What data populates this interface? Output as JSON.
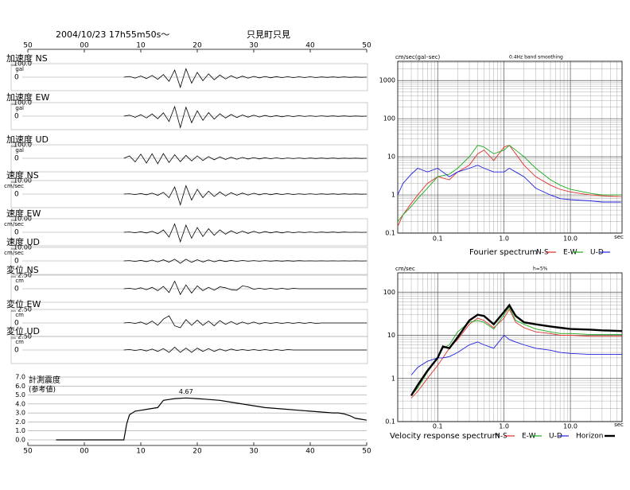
{
  "chart_data": [
    {
      "type": "waveform",
      "title": "2004/10/23 17h55m50s～",
      "station": "只見町只見",
      "xlim": [
        0,
        60
      ],
      "xticks": [
        {
          "value": 0,
          "label": "50"
        },
        {
          "value": 10,
          "label": "00"
        },
        {
          "value": 20,
          "label": "10"
        },
        {
          "value": 30,
          "label": "20"
        },
        {
          "value": 40,
          "label": "30"
        },
        {
          "value": 50,
          "label": "40"
        },
        {
          "value": 60,
          "label": "50"
        }
      ],
      "x": [
        17,
        18,
        19,
        20,
        21,
        22,
        23,
        24,
        25,
        26,
        27,
        28,
        29,
        30,
        31,
        32,
        33,
        34,
        35,
        36,
        37,
        38,
        39,
        40,
        41,
        42,
        43,
        44,
        45,
        46,
        47,
        48,
        49,
        50,
        51,
        52,
        53,
        54,
        55,
        56,
        57,
        58,
        59,
        60
      ],
      "color": "#000000",
      "panels": [
        {
          "name": "加速度 NS",
          "unit": "gal",
          "ylim": [
            -100,
            100
          ],
          "yticks": [
            0,
            {
              "value": 100,
              "label": "100.0"
            }
          ],
          "values": [
            0,
            6,
            -8,
            10,
            -12,
            15,
            -18,
            22,
            -35,
            60,
            -85,
            70,
            -50,
            40,
            -30,
            28,
            -22,
            18,
            -15,
            12,
            -10,
            9,
            -8,
            7,
            -6,
            6,
            -5,
            5,
            -4,
            4,
            -4,
            3,
            -3,
            3,
            -3,
            2,
            -2,
            2,
            -2,
            2,
            -2,
            1,
            -1,
            0
          ]
        },
        {
          "name": "加速度 EW",
          "unit": "gal",
          "ylim": [
            -100,
            100
          ],
          "yticks": [
            0,
            {
              "value": 100,
              "label": "100.0"
            }
          ],
          "values": [
            0,
            8,
            -10,
            12,
            -15,
            18,
            -22,
            28,
            -45,
            80,
            -95,
            75,
            -55,
            45,
            -35,
            30,
            -25,
            20,
            -16,
            14,
            -12,
            10,
            -9,
            8,
            -7,
            6,
            -6,
            5,
            -5,
            4,
            -4,
            4,
            -3,
            3,
            -3,
            3,
            -2,
            2,
            -2,
            2,
            -2,
            1,
            -1,
            0
          ]
        },
        {
          "name": "加速度 UD",
          "unit": "gal",
          "ylim": [
            -100,
            100
          ],
          "yticks": [
            0,
            {
              "value": 100,
              "label": "100.0"
            }
          ],
          "values": [
            0,
            20,
            -30,
            35,
            -40,
            38,
            -45,
            40,
            -35,
            30,
            -28,
            25,
            -22,
            20,
            -18,
            15,
            -13,
            12,
            -10,
            9,
            -8,
            7,
            -6,
            6,
            -5,
            5,
            -4,
            4,
            -4,
            3,
            -3,
            3,
            -3,
            2,
            -2,
            2,
            -2,
            2,
            -2,
            1,
            -1,
            1,
            -1,
            0
          ]
        },
        {
          "name": "速度 NS",
          "unit": "cm/sec",
          "ylim": [
            -10,
            10
          ],
          "yticks": [
            0,
            {
              "value": 10,
              "label": "10.00"
            }
          ],
          "values": [
            0,
            0.3,
            -0.4,
            0.5,
            -0.6,
            0.8,
            -1,
            1.5,
            -3,
            6,
            -9,
            7,
            -5,
            4,
            -3,
            2.5,
            -2,
            1.8,
            -1.5,
            1.2,
            -1,
            0.9,
            -0.8,
            0.7,
            -0.6,
            0.6,
            -0.5,
            0.5,
            -0.4,
            0.4,
            -0.4,
            0.3,
            -0.3,
            0.3,
            -0.3,
            0.2,
            -0.2,
            0.2,
            -0.2,
            0.2,
            -0.1,
            0.1,
            -0.1,
            0
          ]
        },
        {
          "name": "速度 EW",
          "unit": "cm/sec",
          "ylim": [
            -10,
            10
          ],
          "yticks": [
            0,
            {
              "value": 10,
              "label": "10.00"
            }
          ],
          "values": [
            0,
            0.3,
            -0.4,
            0.5,
            -0.6,
            0.8,
            -1.2,
            2,
            -4,
            7,
            -8,
            6,
            -5,
            4,
            -3.5,
            3,
            -2.5,
            2,
            -1.6,
            1.3,
            -1.1,
            1,
            -0.9,
            0.8,
            -0.7,
            0.6,
            -0.5,
            0.5,
            -0.5,
            0.4,
            -0.4,
            0.3,
            -0.3,
            0.3,
            -0.3,
            0.2,
            -0.2,
            0.2,
            -0.2,
            0.2,
            -0.1,
            0.1,
            -0.1,
            0
          ]
        },
        {
          "name": "速度 UD",
          "unit": "cm/sec",
          "ylim": [
            -10,
            10
          ],
          "yticks": [
            0,
            {
              "value": 10,
              "label": "10.00"
            }
          ],
          "values": [
            0,
            0.3,
            -0.4,
            0.5,
            -0.6,
            0.7,
            -0.8,
            0.9,
            -1,
            1.5,
            -2,
            1.5,
            -1.2,
            1,
            -0.9,
            0.8,
            -0.7,
            0.6,
            -0.5,
            0.5,
            -0.4,
            0.4,
            -0.3,
            0.3,
            -0.3,
            0.3,
            -0.2,
            0.2,
            -0.2,
            0.2,
            -0.2,
            0.2,
            -0.1,
            0.1,
            -0.1,
            0.1,
            -0.1,
            0.1,
            -0.1,
            0.1,
            -0.1,
            0.1,
            -0.1,
            0
          ]
        },
        {
          "name": "変位 NS",
          "unit": "cm",
          "ylim": [
            -2.5,
            2.5
          ],
          "yticks": [
            0,
            {
              "value": 2.5,
              "label": "2.50"
            }
          ],
          "values": [
            0,
            0.1,
            -0.1,
            0.2,
            -0.2,
            0.3,
            -0.4,
            0.5,
            -0.8,
            1.6,
            -1.2,
            0.8,
            -0.9,
            0.6,
            -0.4,
            0.3,
            -0.3,
            0.4,
            0.2,
            -0.2,
            -0.3,
            0.6,
            0.4,
            -0.1,
            0.1,
            -0.1,
            0.1,
            -0.1,
            0.1,
            -0.1,
            0.1,
            0,
            0,
            0,
            0,
            0,
            0,
            0,
            0,
            0,
            0,
            0,
            0,
            0
          ]
        },
        {
          "name": "変位 EW",
          "unit": "cm",
          "ylim": [
            -2.5,
            2.5
          ],
          "yticks": [
            0,
            {
              "value": 2.5,
              "label": "2.50"
            }
          ],
          "values": [
            0,
            0.1,
            -0.1,
            0.2,
            -0.3,
            0.4,
            -0.5,
            0.8,
            1.5,
            -0.6,
            -1,
            0.7,
            -0.5,
            0.6,
            -0.5,
            0.4,
            -0.6,
            0.5,
            -0.3,
            0.3,
            -0.3,
            0.2,
            -0.2,
            0.2,
            -0.2,
            0.1,
            -0.1,
            0.1,
            -0.1,
            0.1,
            -0.1,
            0.1,
            -0.1,
            0.1,
            -0.1,
            0,
            0,
            0,
            0,
            0,
            0,
            0,
            0,
            0
          ]
        },
        {
          "name": "変位 UD",
          "unit": "cm",
          "ylim": [
            -2.5,
            2.5
          ],
          "yticks": [
            0,
            {
              "value": 2.5,
              "label": "2.50"
            }
          ],
          "values": [
            0,
            0.1,
            -0.1,
            0.1,
            -0.2,
            0.2,
            -0.3,
            0.3,
            -0.5,
            0.6,
            -0.5,
            0.4,
            -0.5,
            0.4,
            -0.3,
            0.3,
            -0.3,
            0.2,
            -0.2,
            0.2,
            -0.1,
            0.1,
            -0.1,
            0.1,
            -0.1,
            0.1,
            -0.1,
            0.1,
            -0.1,
            0.1,
            0,
            0,
            0,
            0,
            0,
            0,
            0,
            0,
            0,
            0,
            0,
            0,
            0,
            0
          ]
        }
      ]
    },
    {
      "type": "line",
      "title": "計測震度",
      "subtitle": "(参考値)",
      "color": "#000000",
      "grid": true,
      "xlim": [
        0,
        60
      ],
      "xticks": [
        {
          "value": 0,
          "label": "50"
        },
        {
          "value": 10,
          "label": "00"
        },
        {
          "value": 20,
          "label": "10"
        },
        {
          "value": 30,
          "label": "20"
        },
        {
          "value": 40,
          "label": "30"
        },
        {
          "value": 50,
          "label": "40"
        },
        {
          "value": 60,
          "label": "50"
        }
      ],
      "ylim": [
        0,
        7
      ],
      "yticks": [
        {
          "value": 0,
          "label": "0.0"
        },
        {
          "value": 1,
          "label": "1.0"
        },
        {
          "value": 2,
          "label": "2.0"
        },
        {
          "value": 3,
          "label": "3.0"
        },
        {
          "value": 4,
          "label": "4.0"
        },
        {
          "value": 5,
          "label": "5.0"
        },
        {
          "value": 6,
          "label": "6.0"
        },
        {
          "value": 7,
          "label": "7.0"
        }
      ],
      "x": [
        5,
        17,
        17.5,
        18,
        19,
        20,
        21,
        22,
        23,
        24,
        25,
        26,
        28,
        30,
        32,
        34,
        36,
        38,
        40,
        42,
        44,
        46,
        48,
        50,
        52,
        54,
        55,
        56,
        57,
        58,
        59,
        60
      ],
      "values": [
        0,
        0,
        1.8,
        2.8,
        3.2,
        3.3,
        3.4,
        3.5,
        3.6,
        4.4,
        4.5,
        4.6,
        4.67,
        4.6,
        4.5,
        4.4,
        4.2,
        4.0,
        3.8,
        3.6,
        3.5,
        3.4,
        3.3,
        3.2,
        3.1,
        3.0,
        3.0,
        2.9,
        2.7,
        2.4,
        2.3,
        2.2
      ],
      "annotations": [
        {
          "text": "4.67",
          "x": 28,
          "value": 4.67
        }
      ]
    },
    {
      "type": "loglog",
      "title": "Fourier spectrum",
      "unit": "cm/sec(gal･sec)",
      "note": "0.4Hz band smoothing",
      "xlabel": "sec",
      "log_x": true,
      "log_y": true,
      "grid": true,
      "legend": "bottom",
      "xlim": [
        0.025,
        60
      ],
      "ylim": [
        0.1,
        3200
      ],
      "xticks": [
        0.1,
        {
          "value": 1,
          "label": "1.0"
        },
        {
          "value": 10,
          "label": "10.0"
        }
      ],
      "yticks": [
        0.1,
        1,
        10,
        100,
        1000
      ],
      "x": [
        0.025,
        0.03,
        0.04,
        0.05,
        0.07,
        0.1,
        0.15,
        0.2,
        0.3,
        0.4,
        0.5,
        0.7,
        1.0,
        1.2,
        1.5,
        2,
        3,
        5,
        7,
        10,
        20,
        30,
        58
      ],
      "series": [
        {
          "name": "N-S",
          "color": "#e0302a",
          "values": [
            0.15,
            0.3,
            0.6,
            1,
            2,
            3,
            2.5,
            4,
            6,
            12,
            15,
            8,
            18,
            20,
            12,
            6,
            3,
            1.8,
            1.4,
            1.2,
            1,
            0.95,
            0.9
          ]
        },
        {
          "name": "E-W",
          "color": "#1faa1f",
          "values": [
            0.2,
            0.3,
            0.5,
            0.8,
            1.5,
            3,
            3.5,
            5,
            10,
            20,
            18,
            12,
            15,
            20,
            15,
            10,
            5,
            2.5,
            1.8,
            1.4,
            1.1,
            1,
            1
          ]
        },
        {
          "name": "U-D",
          "color": "#2020e0",
          "values": [
            1,
            2,
            3.5,
            5,
            4,
            5,
            3,
            4,
            5,
            6,
            5,
            4,
            4,
            5,
            4,
            3,
            1.5,
            1,
            0.8,
            0.75,
            0.7,
            0.65,
            0.65
          ]
        }
      ]
    },
    {
      "type": "loglog",
      "title": "Velocity response spectrum",
      "unit": "cm/sec",
      "note": "h=5%",
      "xlabel": "sec",
      "log_x": true,
      "log_y": true,
      "grid": true,
      "legend": "bottom",
      "xlim": [
        0.025,
        60
      ],
      "ylim": [
        0.1,
        280
      ],
      "xticks": [
        0.1,
        {
          "value": 1,
          "label": "1.0"
        },
        {
          "value": 10,
          "label": "10.0"
        }
      ],
      "yticks": [
        0.1,
        1,
        10,
        100
      ],
      "x": [
        0.04,
        0.05,
        0.07,
        0.1,
        0.12,
        0.15,
        0.2,
        0.3,
        0.4,
        0.5,
        0.7,
        1.0,
        1.2,
        1.5,
        2,
        3,
        5,
        7,
        10,
        20,
        30,
        60
      ],
      "series": [
        {
          "name": "N-S",
          "color": "#e0302a",
          "values": [
            0.35,
            0.5,
            1,
            2,
            3,
            5,
            8,
            18,
            25,
            22,
            15,
            25,
            40,
            20,
            15,
            12,
            11,
            10,
            10,
            9.5,
            9.5,
            9.5
          ]
        },
        {
          "name": "E-W",
          "color": "#1faa1f",
          "values": [
            0.4,
            0.6,
            1.4,
            3,
            5,
            6,
            12,
            20,
            22,
            20,
            14,
            30,
            45,
            22,
            18,
            14,
            12,
            11,
            11,
            10.5,
            10.5,
            10.5
          ]
        },
        {
          "name": "U-D",
          "color": "#2020e0",
          "values": [
            1.2,
            1.8,
            2.5,
            3,
            3,
            3.2,
            4,
            6,
            7,
            6,
            5,
            10,
            8,
            7,
            6,
            5,
            4.5,
            4,
            3.8,
            3.6,
            3.6,
            3.6
          ]
        },
        {
          "name": "Horizon",
          "color": "#000000",
          "values": [
            0.4,
            0.7,
            1.5,
            3,
            5.5,
            5,
            9,
            22,
            30,
            28,
            18,
            35,
            50,
            28,
            20,
            18,
            16,
            15,
            14,
            13.5,
            13,
            12.5
          ]
        }
      ]
    }
  ]
}
